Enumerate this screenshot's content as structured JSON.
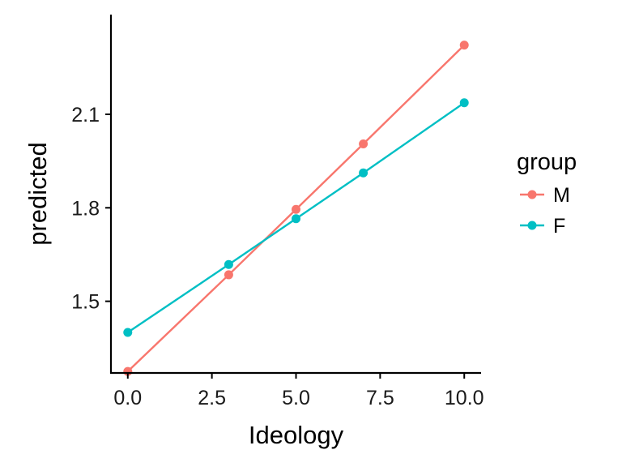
{
  "chart_data": {
    "type": "line",
    "title": "",
    "xlabel": "Ideology",
    "ylabel": "predicted",
    "xlim": [
      -0.5,
      10.5
    ],
    "ylim": [
      1.27,
      2.42
    ],
    "x_ticks": [
      0.0,
      2.5,
      5.0,
      7.5,
      10.0
    ],
    "x_tick_labels": [
      "0.0",
      "2.5",
      "5.0",
      "7.5",
      "10.0"
    ],
    "y_ticks": [
      1.5,
      1.8,
      2.1
    ],
    "y_tick_labels": [
      "1.5",
      "1.8",
      "2.1"
    ],
    "grid": false,
    "legend": {
      "title": "group",
      "placement": "right"
    },
    "series": [
      {
        "name": "M",
        "color": "#F8766D",
        "x": [
          0,
          3,
          5,
          7,
          10
        ],
        "y": [
          1.275,
          1.585,
          1.795,
          2.005,
          2.322
        ]
      },
      {
        "name": "F",
        "color": "#00BFC4",
        "x": [
          0,
          3,
          5,
          7,
          10
        ],
        "y": [
          1.4,
          1.618,
          1.765,
          1.912,
          2.137
        ]
      }
    ]
  }
}
